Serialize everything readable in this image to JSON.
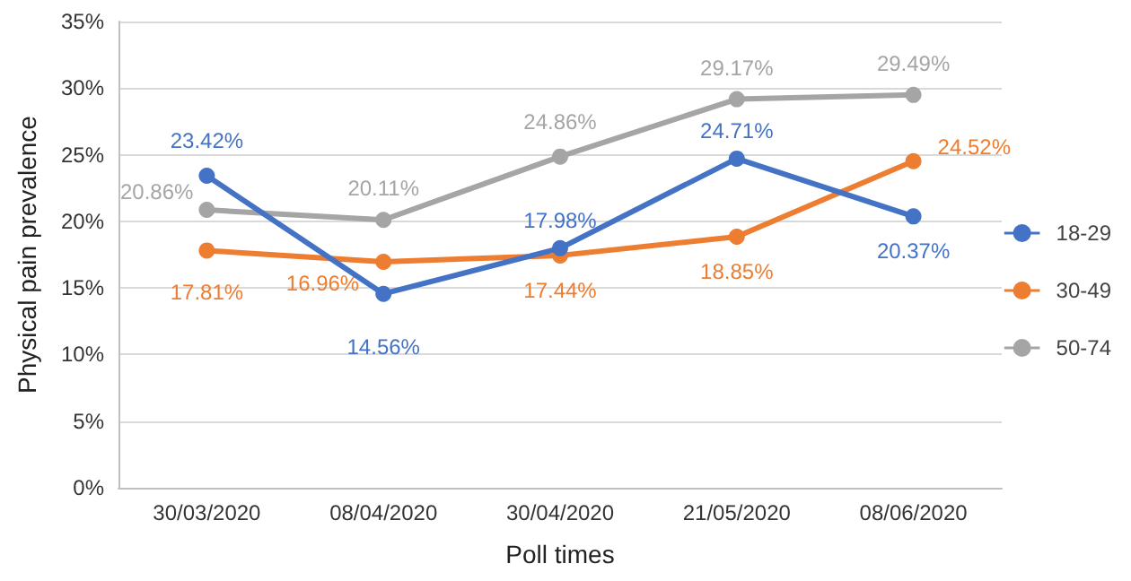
{
  "chart_data": {
    "type": "line",
    "xlabel": "Poll times",
    "ylabel": "Physical pain prevalence",
    "categories": [
      "30/03/2020",
      "08/04/2020",
      "30/04/2020",
      "21/05/2020",
      "08/06/2020"
    ],
    "series": [
      {
        "name": "18-29",
        "color": "#4472c4",
        "values": [
          23.42,
          14.56,
          17.98,
          24.71,
          20.37
        ],
        "value_labels": [
          "23.42%",
          "14.56%",
          "17.98%",
          "24.71%",
          "20.37%"
        ]
      },
      {
        "name": "30-49",
        "color": "#ed7d31",
        "values": [
          17.81,
          16.96,
          17.44,
          18.85,
          24.52
        ],
        "value_labels": [
          "17.81%",
          "16.96%",
          "17.44%",
          "18.85%",
          "24.52%"
        ]
      },
      {
        "name": "50-74",
        "color": "#a5a5a5",
        "values": [
          20.86,
          20.11,
          24.86,
          29.17,
          29.49
        ],
        "value_labels": [
          "20.86%",
          "20.11%",
          "24.86%",
          "29.17%",
          "29.49%"
        ]
      }
    ],
    "ylim": [
      0,
      35
    ],
    "yticks": [
      {
        "value": 0,
        "label": "0%"
      },
      {
        "value": 5,
        "label": "5%"
      },
      {
        "value": 10,
        "label": "10%"
      },
      {
        "value": 15,
        "label": "15%"
      },
      {
        "value": 20,
        "label": "20%"
      },
      {
        "value": 25,
        "label": "25%"
      },
      {
        "value": 30,
        "label": "30%"
      },
      {
        "value": 35,
        "label": "35%"
      }
    ],
    "grid": "y",
    "legend": "right",
    "marker": "circle",
    "line_style": "solid"
  }
}
